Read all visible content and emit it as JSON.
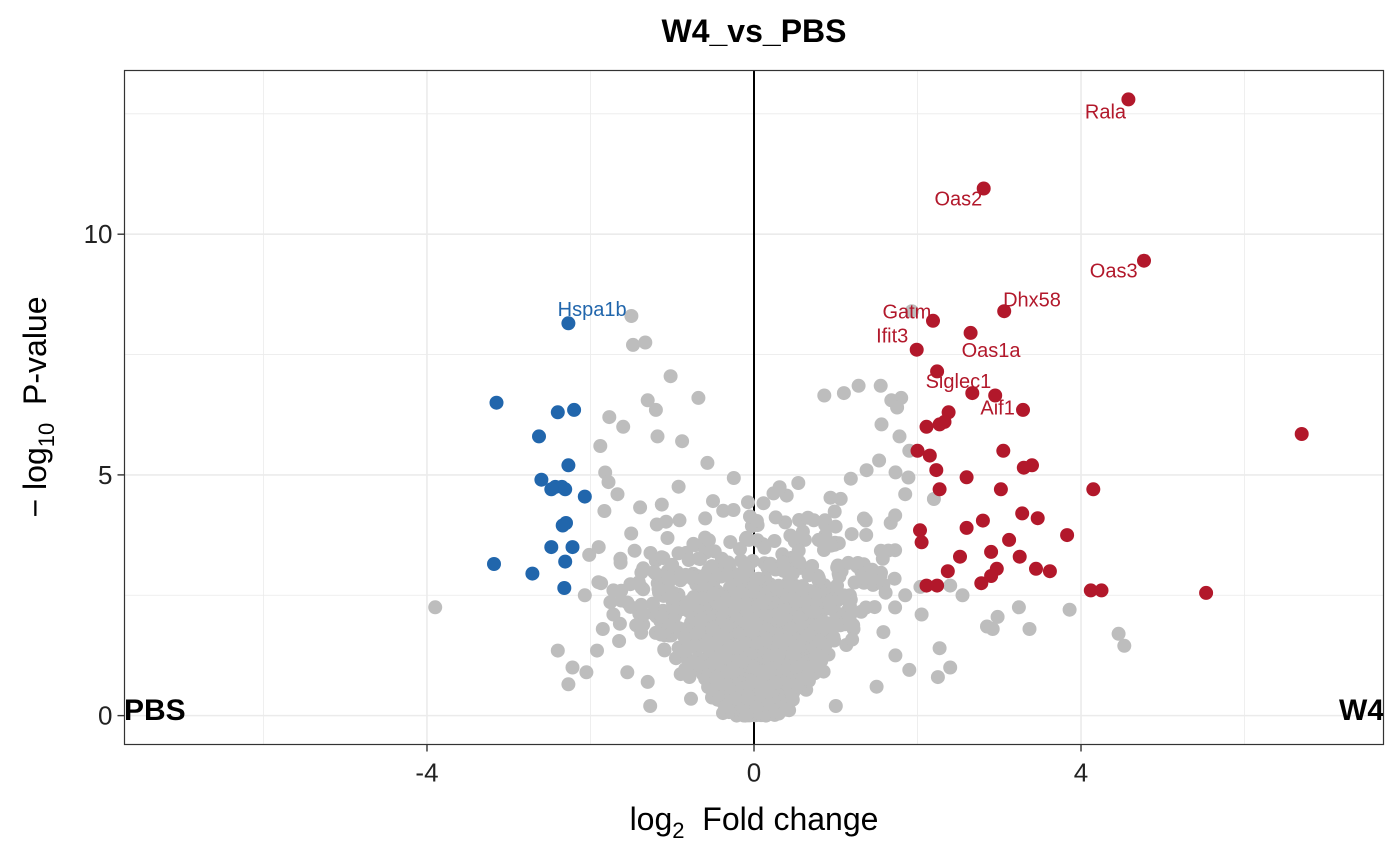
{
  "chart_data": {
    "type": "scatter",
    "title": "W4_vs_PBS",
    "xlabel": {
      "main": "log",
      "sub": "2",
      "rest": "  Fold change"
    },
    "ylabel": {
      "prefix": "− log",
      "sub": "10",
      "rest": "  P-value"
    },
    "xlim": [
      -7.7,
      7.7
    ],
    "ylim": [
      -0.6,
      13.4
    ],
    "x_ticks": [
      -4,
      0,
      4
    ],
    "x_tick_labels": [
      "-4",
      "0",
      "4"
    ],
    "y_ticks": [
      0,
      5,
      10
    ],
    "y_tick_labels": [
      "0",
      "5",
      "10"
    ],
    "vline_x": 0,
    "grid": true,
    "corner_labels": {
      "left": "PBS",
      "right": "W4"
    },
    "colors": {
      "up": "#b2182b",
      "down": "#2166ac",
      "ns": "#bdbdbd"
    },
    "up": [
      [
        4.58,
        12.8
      ],
      [
        2.81,
        10.95
      ],
      [
        4.77,
        9.45
      ],
      [
        3.06,
        8.4
      ],
      [
        2.19,
        8.2
      ],
      [
        2.65,
        7.95
      ],
      [
        1.99,
        7.6
      ],
      [
        2.24,
        7.15
      ],
      [
        2.67,
        6.7
      ],
      [
        2.95,
        6.65
      ],
      [
        3.29,
        6.35
      ],
      [
        2.38,
        6.3
      ],
      [
        2.33,
        6.1
      ],
      [
        2.27,
        6.05
      ],
      [
        2.11,
        6.0
      ],
      [
        6.7,
        5.85
      ],
      [
        3.05,
        5.5
      ],
      [
        2.0,
        5.5
      ],
      [
        2.15,
        5.4
      ],
      [
        3.4,
        5.2
      ],
      [
        3.3,
        5.15
      ],
      [
        2.23,
        5.1
      ],
      [
        2.6,
        4.95
      ],
      [
        4.15,
        4.7
      ],
      [
        3.02,
        4.7
      ],
      [
        2.27,
        4.7
      ],
      [
        3.28,
        4.2
      ],
      [
        3.47,
        4.1
      ],
      [
        2.8,
        4.05
      ],
      [
        2.6,
        3.9
      ],
      [
        2.03,
        3.85
      ],
      [
        3.83,
        3.75
      ],
      [
        3.12,
        3.65
      ],
      [
        2.05,
        3.6
      ],
      [
        2.9,
        3.4
      ],
      [
        3.25,
        3.3
      ],
      [
        2.52,
        3.3
      ],
      [
        3.45,
        3.05
      ],
      [
        3.62,
        3.0
      ],
      [
        2.97,
        3.05
      ],
      [
        2.37,
        3.0
      ],
      [
        2.9,
        2.9
      ],
      [
        2.78,
        2.75
      ],
      [
        2.24,
        2.7
      ],
      [
        2.11,
        2.7
      ],
      [
        4.12,
        2.6
      ],
      [
        4.25,
        2.6
      ],
      [
        5.53,
        2.55
      ]
    ],
    "down": [
      [
        -2.27,
        8.15
      ],
      [
        -3.15,
        6.5
      ],
      [
        -2.4,
        6.3
      ],
      [
        -2.2,
        6.35
      ],
      [
        -2.63,
        5.8
      ],
      [
        -2.27,
        5.2
      ],
      [
        -2.6,
        4.9
      ],
      [
        -2.43,
        4.75
      ],
      [
        -2.35,
        4.75
      ],
      [
        -2.48,
        4.7
      ],
      [
        -2.31,
        4.7
      ],
      [
        -2.07,
        4.55
      ],
      [
        -2.3,
        4.0
      ],
      [
        -2.34,
        3.95
      ],
      [
        -2.22,
        3.5
      ],
      [
        -2.48,
        3.5
      ],
      [
        -2.31,
        3.2
      ],
      [
        -3.18,
        3.15
      ],
      [
        -2.71,
        2.95
      ],
      [
        -2.32,
        2.65
      ]
    ],
    "labels": [
      {
        "text": "Rala",
        "x": 4.3,
        "y": 12.4,
        "cls": "up"
      },
      {
        "text": "Oas2",
        "x": 2.5,
        "y": 10.6,
        "cls": "up"
      },
      {
        "text": "Oas3",
        "x": 4.4,
        "y": 9.1,
        "cls": "up"
      },
      {
        "text": "Dhx58",
        "x": 3.4,
        "y": 8.5,
        "cls": "up"
      },
      {
        "text": "Gatm",
        "x": 1.87,
        "y": 8.25,
        "cls": "up"
      },
      {
        "text": "Ifit3",
        "x": 1.69,
        "y": 7.75,
        "cls": "up"
      },
      {
        "text": "Oas1a",
        "x": 2.9,
        "y": 7.45,
        "cls": "up"
      },
      {
        "text": "Siglec1",
        "x": 2.5,
        "y": 6.8,
        "cls": "up"
      },
      {
        "text": "Aif1",
        "x": 2.98,
        "y": 6.25,
        "cls": "up"
      },
      {
        "text": "Hspa1b",
        "x": -1.98,
        "y": 8.3,
        "cls": "down"
      }
    ],
    "ns_highlight": [
      [
        -3.9,
        2.25
      ],
      [
        -1.5,
        8.3
      ],
      [
        -1.48,
        7.7
      ],
      [
        -1.33,
        7.75
      ],
      [
        -1.02,
        7.05
      ],
      [
        -0.68,
        6.6
      ],
      [
        -1.3,
        6.55
      ],
      [
        -1.2,
        6.35
      ],
      [
        -1.77,
        6.2
      ],
      [
        -1.6,
        6.0
      ],
      [
        -1.18,
        5.8
      ],
      [
        -0.88,
        5.7
      ],
      [
        -1.88,
        5.6
      ],
      [
        -0.57,
        5.25
      ],
      [
        -1.82,
        5.05
      ],
      [
        -1.78,
        4.85
      ],
      [
        -1.67,
        4.6
      ],
      [
        -1.83,
        4.25
      ],
      [
        -1.9,
        3.5
      ],
      [
        -1.87,
        2.75
      ],
      [
        -1.72,
        2.6
      ],
      [
        -2.07,
        2.5
      ],
      [
        -1.38,
        2.3
      ],
      [
        -1.72,
        2.1
      ],
      [
        -1.85,
        1.8
      ],
      [
        -1.65,
        1.55
      ],
      [
        -2.4,
        1.35
      ],
      [
        -1.92,
        1.35
      ],
      [
        -2.22,
        1.0
      ],
      [
        -2.05,
        0.9
      ],
      [
        -1.55,
        0.9
      ],
      [
        -2.27,
        0.65
      ],
      [
        -1.3,
        0.7
      ],
      [
        -1.27,
        0.2
      ],
      [
        0.86,
        6.65
      ],
      [
        1.1,
        6.7
      ],
      [
        1.28,
        6.85
      ],
      [
        1.55,
        6.85
      ],
      [
        1.68,
        6.55
      ],
      [
        1.8,
        6.6
      ],
      [
        1.75,
        6.4
      ],
      [
        1.93,
        8.4
      ],
      [
        1.56,
        6.05
      ],
      [
        1.78,
        5.8
      ],
      [
        1.9,
        5.5
      ],
      [
        1.53,
        5.3
      ],
      [
        1.85,
        4.6
      ],
      [
        2.2,
        4.5
      ],
      [
        2.4,
        2.7
      ],
      [
        1.85,
        2.5
      ],
      [
        2.55,
        2.5
      ],
      [
        2.05,
        2.1
      ],
      [
        2.85,
        1.85
      ],
      [
        2.92,
        1.8
      ],
      [
        2.98,
        2.05
      ],
      [
        3.37,
        1.8
      ],
      [
        3.24,
        2.25
      ],
      [
        3.86,
        2.2
      ],
      [
        4.46,
        1.7
      ],
      [
        4.53,
        1.45
      ],
      [
        2.27,
        1.4
      ],
      [
        2.4,
        1.0
      ],
      [
        2.25,
        0.8
      ],
      [
        1.9,
        0.95
      ],
      [
        1.73,
        1.25
      ],
      [
        1.5,
        0.6
      ],
      [
        1.0,
        0.2
      ]
    ]
  }
}
